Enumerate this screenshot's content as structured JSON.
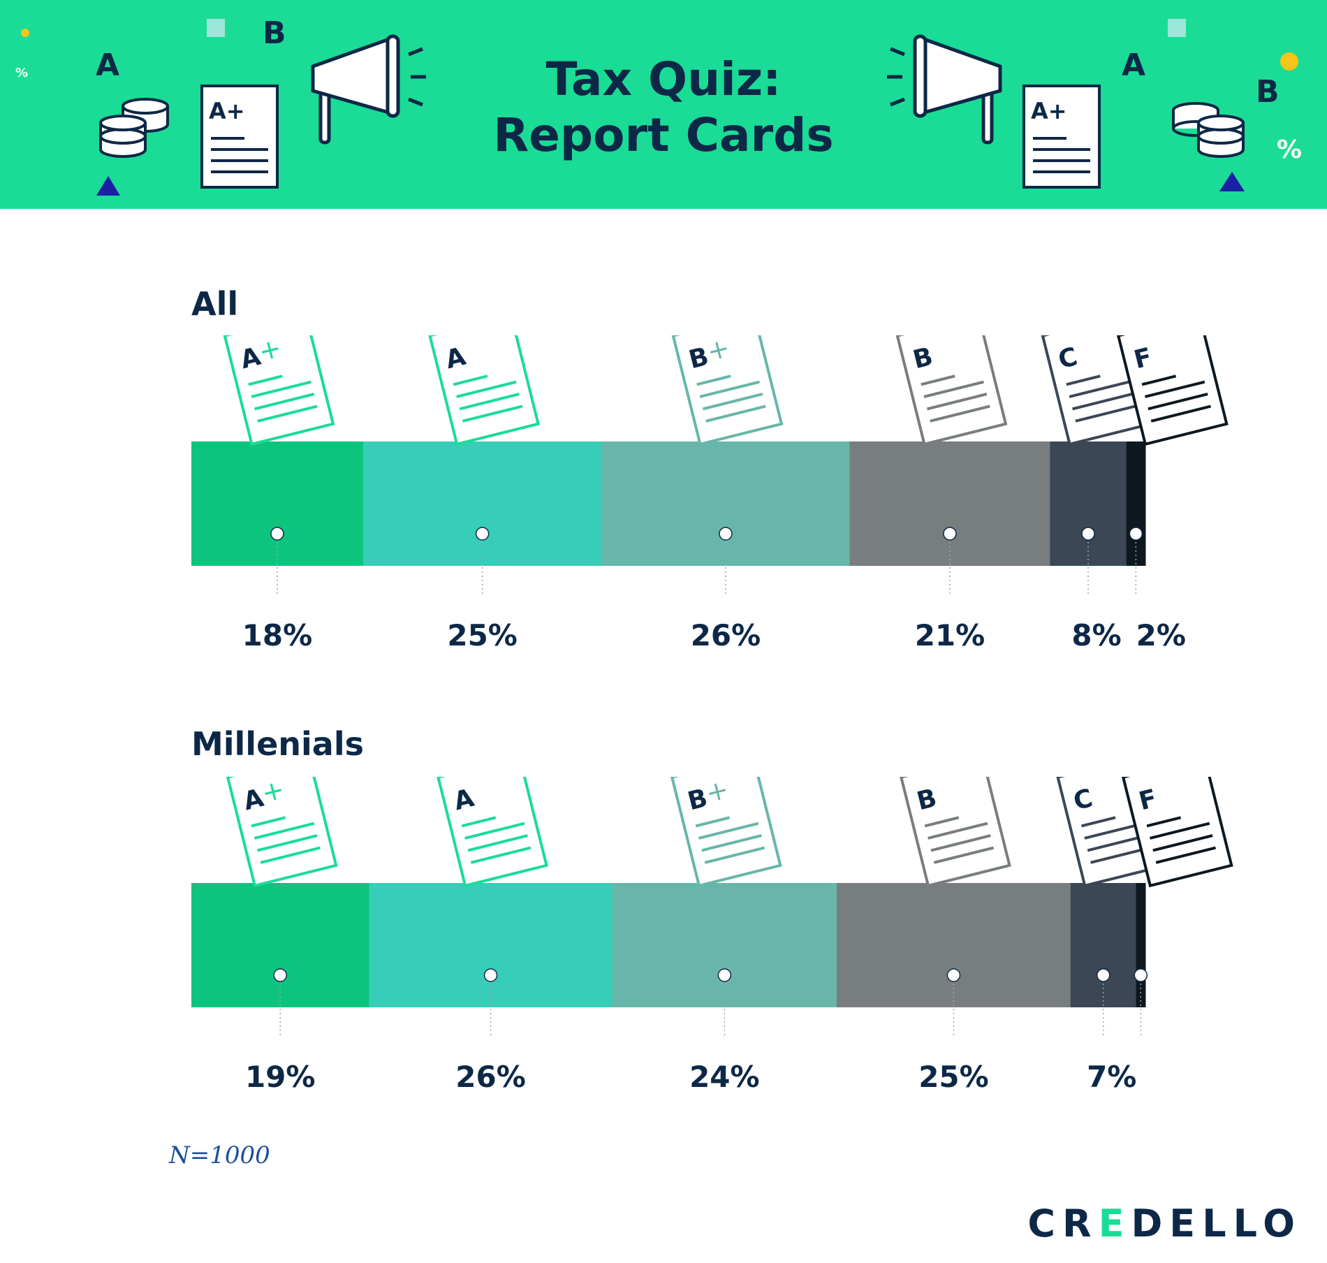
{
  "header": {
    "title_line1": "Tax Quiz:",
    "title_line2": "Report Cards",
    "colors": {
      "background": "#1adc96",
      "text": "#0d2847"
    },
    "decorations": {
      "letters": [
        "A",
        "B",
        "A+",
        "%"
      ],
      "icons": [
        "coins-stack-icon",
        "report-card-icon",
        "megaphone-icon",
        "triangle-icon",
        "square-icon",
        "dot-icon"
      ]
    }
  },
  "chart_data": [
    {
      "type": "bar",
      "stacked": true,
      "orientation": "horizontal",
      "title": "All",
      "categories": [
        "A+",
        "A",
        "B+",
        "B",
        "C",
        "F"
      ],
      "values": [
        18,
        25,
        26,
        21,
        8,
        2
      ],
      "value_labels": [
        "18%",
        "25%",
        "26%",
        "21%",
        "8%",
        "2%"
      ],
      "unit": "%",
      "colors": [
        "#0dc47f",
        "#37cdb8",
        "#68b6aa",
        "#787d80",
        "#3b4755",
        "#0d1820"
      ]
    },
    {
      "type": "bar",
      "stacked": true,
      "orientation": "horizontal",
      "title": "Millenials",
      "categories": [
        "A+",
        "A",
        "B+",
        "B",
        "C",
        "F"
      ],
      "values": [
        19,
        26,
        24,
        25,
        7,
        1
      ],
      "value_labels": [
        "19%",
        "26%",
        "24%",
        "25%",
        "7%",
        ""
      ],
      "unit": "%",
      "colors": [
        "#0dc47f",
        "#37cdb8",
        "#68b6aa",
        "#787d80",
        "#3b4755",
        "#0d1820"
      ]
    }
  ],
  "card_colors": [
    "#1adc96",
    "#1adc96",
    "#68b6aa",
    "#787d80",
    "#3b4755",
    "#0d1820"
  ],
  "footer": {
    "note": "N=1000",
    "brand_a": "CR",
    "brand_b": "E",
    "brand_c": "DELLO"
  }
}
